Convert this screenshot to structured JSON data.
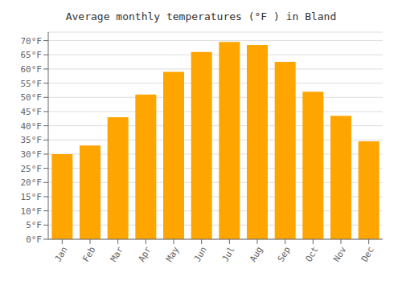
{
  "chart_data": {
    "type": "bar",
    "title": "Average monthly temperatures (°F ) in Bland",
    "categories": [
      "Jan",
      "Feb",
      "Mar",
      "Apr",
      "May",
      "Jun",
      "Jul",
      "Aug",
      "Sep",
      "Oct",
      "Nov",
      "Dec"
    ],
    "values": [
      30,
      33,
      43,
      51,
      59,
      66,
      69.5,
      68.5,
      62.5,
      52,
      43.5,
      34.5
    ],
    "color": "#FFA500",
    "ylim": [
      0,
      73
    ],
    "yticks": [
      {
        "value": 0,
        "label": "0°F"
      },
      {
        "value": 5,
        "label": "5°F"
      },
      {
        "value": 10,
        "label": "10°F"
      },
      {
        "value": 15,
        "label": "15°F"
      },
      {
        "value": 20,
        "label": "20°F"
      },
      {
        "value": 25,
        "label": "25°F"
      },
      {
        "value": 30,
        "label": "30°F"
      },
      {
        "value": 35,
        "label": "35°F"
      },
      {
        "value": 40,
        "label": "40°F"
      },
      {
        "value": 45,
        "label": "45°F"
      },
      {
        "value": 50,
        "label": "50°F"
      },
      {
        "value": 55,
        "label": "55°F"
      },
      {
        "value": 60,
        "label": "60°F"
      },
      {
        "value": 65,
        "label": "65°F"
      },
      {
        "value": 70,
        "label": "70°F"
      }
    ],
    "grid": true
  }
}
